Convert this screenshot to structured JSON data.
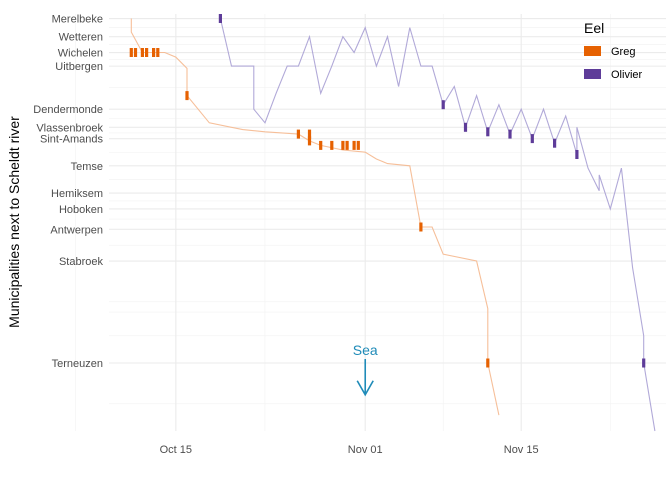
{
  "chart_data": {
    "type": "line",
    "title": "",
    "xlabel": "",
    "ylabel": "Municipalities next to Scheldt river",
    "x_axis": {
      "type": "date",
      "ticks": [
        "Oct 15",
        "Nov 01",
        "Nov 15"
      ],
      "tick_dates": [
        "2021-10-15",
        "2021-11-01",
        "2021-11-15"
      ],
      "range": [
        "2021-10-09",
        "2021-11-28"
      ]
    },
    "y_axis": {
      "unit": "km from Merelbeke",
      "reversed": true,
      "range": [
        -2,
        182
      ],
      "stations": [
        {
          "name": "Merelbeke",
          "value": 0
        },
        {
          "name": "Wetteren",
          "value": 8
        },
        {
          "name": "Wichelen",
          "value": 15
        },
        {
          "name": "Uitbergen",
          "value": 21
        },
        {
          "name": "Dendermonde",
          "value": 40
        },
        {
          "name": "Vlassenbroek",
          "value": 48
        },
        {
          "name": "Sint-Amands",
          "value": 53
        },
        {
          "name": "Temse",
          "value": 65
        },
        {
          "name": "Hemiksem",
          "value": 77
        },
        {
          "name": "Hoboken",
          "value": 84
        },
        {
          "name": "Antwerpen",
          "value": 93
        },
        {
          "name": "Stabroek",
          "value": 107
        },
        {
          "name": "Terneuzen",
          "value": 152
        }
      ]
    },
    "grid": true,
    "legend": {
      "title": "Eel",
      "position": "right"
    },
    "annotation": {
      "label": "Sea",
      "x": "2021-11-01",
      "y_start": 152,
      "y_end": 166,
      "color": "#1f8bb8"
    },
    "series": [
      {
        "name": "Greg",
        "color": "#e66101",
        "path": [
          [
            "2021-10-11",
            0
          ],
          [
            "2021-10-11",
            6
          ],
          [
            "2021-10-12",
            15
          ],
          [
            "2021-10-13",
            15
          ],
          [
            "2021-10-14",
            15
          ],
          [
            "2021-10-15",
            17
          ],
          [
            "2021-10-16",
            22
          ],
          [
            "2021-10-16",
            34
          ],
          [
            "2021-10-18",
            46
          ],
          [
            "2021-10-21",
            49
          ],
          [
            "2021-10-23",
            50
          ],
          [
            "2021-10-26",
            51
          ],
          [
            "2021-10-27",
            54
          ],
          [
            "2021-10-28",
            56
          ],
          [
            "2021-10-30",
            58
          ],
          [
            "2021-11-01",
            59
          ],
          [
            "2021-11-02",
            62
          ],
          [
            "2021-11-03",
            64
          ],
          [
            "2021-11-05",
            65
          ],
          [
            "2021-11-06",
            92
          ],
          [
            "2021-11-07",
            92
          ],
          [
            "2021-11-08",
            104
          ],
          [
            "2021-11-11",
            107
          ],
          [
            "2021-11-12",
            128
          ],
          [
            "2021-11-12",
            152
          ],
          [
            "2021-11-13",
            175
          ]
        ],
        "detections": [
          [
            "2021-10-11",
            15
          ],
          [
            "2021-10-11",
            15
          ],
          [
            "2021-10-12",
            15
          ],
          [
            "2021-10-12",
            15
          ],
          [
            "2021-10-13",
            15
          ],
          [
            "2021-10-13",
            15
          ],
          [
            "2021-10-16",
            34
          ],
          [
            "2021-10-26",
            51
          ],
          [
            "2021-10-27",
            51
          ],
          [
            "2021-10-27",
            54
          ],
          [
            "2021-10-28",
            56
          ],
          [
            "2021-10-29",
            56
          ],
          [
            "2021-10-30",
            56
          ],
          [
            "2021-10-30",
            56
          ],
          [
            "2021-10-31",
            56
          ],
          [
            "2021-10-31",
            56
          ],
          [
            "2021-11-06",
            92
          ],
          [
            "2021-11-12",
            152
          ]
        ]
      },
      {
        "name": "Olivier",
        "color": "#5e3c99",
        "path": [
          [
            "2021-10-19",
            0
          ],
          [
            "2021-10-20",
            21
          ],
          [
            "2021-10-22",
            21
          ],
          [
            "2021-10-22",
            40
          ],
          [
            "2021-10-23",
            46
          ],
          [
            "2021-10-24",
            33
          ],
          [
            "2021-10-25",
            21
          ],
          [
            "2021-10-26",
            21
          ],
          [
            "2021-10-27",
            8
          ],
          [
            "2021-10-28",
            33
          ],
          [
            "2021-10-29",
            21
          ],
          [
            "2021-10-30",
            8
          ],
          [
            "2021-10-31",
            15
          ],
          [
            "2021-11-01",
            4
          ],
          [
            "2021-11-02",
            21
          ],
          [
            "2021-11-03",
            8
          ],
          [
            "2021-11-04",
            30
          ],
          [
            "2021-11-05",
            4
          ],
          [
            "2021-11-06",
            21
          ],
          [
            "2021-11-07",
            21
          ],
          [
            "2021-11-08",
            38
          ],
          [
            "2021-11-09",
            30
          ],
          [
            "2021-11-10",
            48
          ],
          [
            "2021-11-11",
            34
          ],
          [
            "2021-11-12",
            50
          ],
          [
            "2021-11-13",
            38
          ],
          [
            "2021-11-14",
            51
          ],
          [
            "2021-11-15",
            40
          ],
          [
            "2021-11-16",
            53
          ],
          [
            "2021-11-17",
            40
          ],
          [
            "2021-11-18",
            55
          ],
          [
            "2021-11-19",
            43
          ],
          [
            "2021-11-20",
            60
          ],
          [
            "2021-11-20",
            48
          ],
          [
            "2021-11-21",
            66
          ],
          [
            "2021-11-22",
            76
          ],
          [
            "2021-11-22",
            69
          ],
          [
            "2021-11-23",
            84
          ],
          [
            "2021-11-24",
            66
          ],
          [
            "2021-11-25",
            110
          ],
          [
            "2021-11-26",
            140
          ],
          [
            "2021-11-26",
            152
          ],
          [
            "2021-11-27",
            182
          ]
        ],
        "detections": [
          [
            "2021-10-19",
            0
          ],
          [
            "2021-11-08",
            38
          ],
          [
            "2021-11-10",
            48
          ],
          [
            "2021-11-12",
            50
          ],
          [
            "2021-11-14",
            51
          ],
          [
            "2021-11-16",
            53
          ],
          [
            "2021-11-18",
            55
          ],
          [
            "2021-11-20",
            60
          ],
          [
            "2021-11-26",
            152
          ]
        ]
      }
    ]
  }
}
